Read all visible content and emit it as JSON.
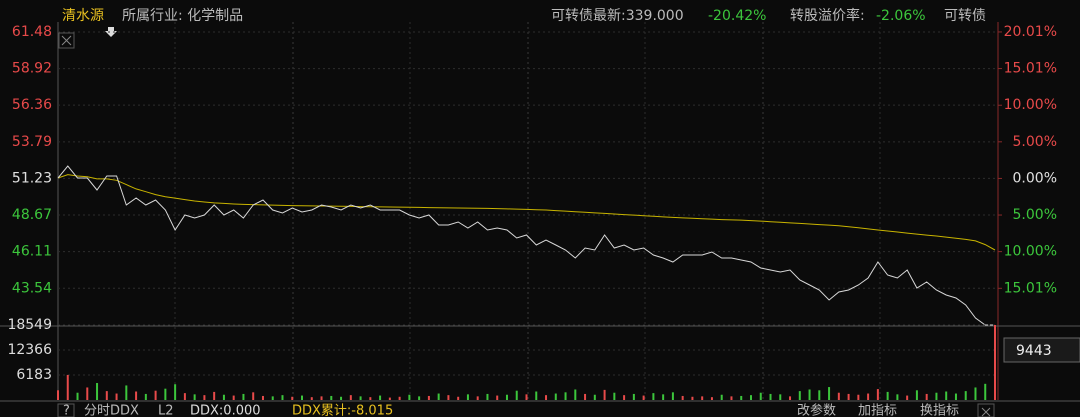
{
  "ui": {
    "stock_name": "清水源",
    "industry": "所属行业: 化学制品",
    "bond_latest": "可转债最新:339.000",
    "bond_change": "-20.42%",
    "premium_label": "转股溢价率:",
    "premium_value": "-2.06%",
    "bond_tab": "可转债",
    "volume_cursor": "9443",
    "help": "?",
    "indicator": "分时DDX",
    "level": "L2",
    "ddx": "DDX:0.000",
    "ddx_total": "DDX累计:-8.015",
    "buttons": [
      "改参数",
      "加指标",
      "换指标"
    ]
  },
  "chart_data": [
    {
      "type": "line",
      "ylim": [
        40.9,
        62.18
      ],
      "yticks": [
        61.48,
        58.92,
        56.36,
        53.79,
        51.23,
        48.67,
        46.11,
        43.54
      ],
      "y2lim": [
        -20.16,
        21.37
      ],
      "y2ticks": [
        {
          "value": 20.01,
          "label": "20.01%"
        },
        {
          "value": 15.01,
          "label": "15.01%"
        },
        {
          "value": 10,
          "label": "10.00%"
        },
        {
          "value": 5,
          "label": "5.00%"
        },
        {
          "value": 0,
          "label": "0.00%"
        },
        {
          "value": -5,
          "label": "5.00%"
        },
        {
          "value": -10,
          "label": "10.00%"
        },
        {
          "value": -15.01,
          "label": "15.01%"
        }
      ],
      "up_color": "#e84a4a",
      "flat_color": "#e0e0e0",
      "down_color": "#3cc63c",
      "grid": true,
      "series": [
        {
          "name": "price",
          "color": "#d8d8d8",
          "values": [
            51.26,
            52.1,
            51.26,
            51.26,
            50.42,
            51.4,
            51.4,
            49.37,
            49.86,
            49.37,
            49.72,
            49.02,
            47.62,
            48.67,
            48.46,
            48.67,
            49.37,
            48.67,
            49.02,
            48.46,
            49.37,
            49.72,
            49.02,
            48.81,
            49.16,
            48.88,
            49.02,
            49.37,
            49.23,
            49.02,
            49.37,
            49.16,
            49.37,
            49.02,
            49.02,
            49.02,
            48.67,
            48.46,
            48.67,
            47.97,
            47.97,
            48.18,
            47.76,
            48.18,
            47.62,
            47.76,
            47.62,
            47.06,
            47.27,
            46.57,
            46.92,
            46.57,
            46.22,
            45.66,
            46.36,
            46.22,
            47.27,
            46.36,
            46.57,
            46.22,
            46.36,
            45.87,
            45.66,
            45.38,
            45.87,
            45.87,
            45.87,
            46.08,
            45.66,
            45.66,
            45.52,
            45.38,
            44.96,
            44.82,
            44.68,
            44.82,
            44.12,
            43.77,
            43.42,
            42.72,
            43.28,
            43.42,
            43.77,
            44.26,
            45.38,
            44.47,
            44.26,
            44.82,
            43.56,
            43.98,
            43.42,
            43.07,
            42.86,
            42.37,
            41.46,
            40.97,
            40.97
          ]
        },
        {
          "name": "average",
          "color": "#c8b400",
          "values": [
            51.26,
            51.5,
            51.4,
            51.35,
            51.2,
            51.2,
            51.1,
            50.8,
            50.5,
            50.3,
            50.1,
            49.95,
            49.85,
            49.75,
            49.65,
            49.58,
            49.52,
            49.48,
            49.44,
            49.41,
            49.4,
            49.38,
            49.36,
            49.34,
            49.33,
            49.32,
            49.31,
            49.3,
            49.29,
            49.28,
            49.27,
            49.26,
            49.25,
            49.24,
            49.23,
            49.22,
            49.21,
            49.2,
            49.19,
            49.18,
            49.17,
            49.16,
            49.15,
            49.14,
            49.13,
            49.12,
            49.1,
            49.08,
            49.06,
            49.04,
            49.02,
            48.98,
            48.94,
            48.9,
            48.86,
            48.82,
            48.78,
            48.74,
            48.7,
            48.66,
            48.62,
            48.58,
            48.54,
            48.5,
            48.47,
            48.44,
            48.41,
            48.38,
            48.35,
            48.33,
            48.31,
            48.28,
            48.24,
            48.2,
            48.16,
            48.12,
            48.08,
            48.04,
            48.0,
            47.96,
            47.92,
            47.85,
            47.78,
            47.7,
            47.62,
            47.55,
            47.48,
            47.4,
            47.33,
            47.26,
            47.2,
            47.12,
            47.04,
            46.96,
            46.86,
            46.6,
            46.22
          ]
        }
      ]
    },
    {
      "type": "bar",
      "ylim": [
        0,
        19290
      ],
      "yticks": [
        18549,
        12366,
        6183
      ],
      "grid": true,
      "values": [
        2400,
        6200,
        1800,
        3100,
        4200,
        2200,
        1600,
        3600,
        2100,
        1500,
        2300,
        2800,
        3900,
        1700,
        1400,
        1200,
        2000,
        1300,
        1100,
        1500,
        1900,
        1000,
        900,
        1200,
        800,
        1100,
        700,
        900,
        1000,
        800,
        1200,
        900,
        700,
        1100,
        600,
        800,
        1300,
        900,
        1000,
        1600,
        1200,
        800,
        1400,
        900,
        1500,
        1100,
        1300,
        2300,
        1400,
        2100,
        1200,
        1600,
        1900,
        2600,
        1500,
        1300,
        2500,
        1800,
        1200,
        1500,
        1100,
        1700,
        1400,
        1900,
        1000,
        800,
        900,
        700,
        1300,
        900,
        1000,
        1200,
        1800,
        1500,
        1400,
        900,
        2200,
        2600,
        2400,
        3200,
        1800,
        1500,
        1300,
        1600,
        2700,
        2000,
        1400,
        1100,
        2400,
        1500,
        1800,
        2100,
        1600,
        2200,
        3100,
        4000,
        18549
      ]
    }
  ]
}
